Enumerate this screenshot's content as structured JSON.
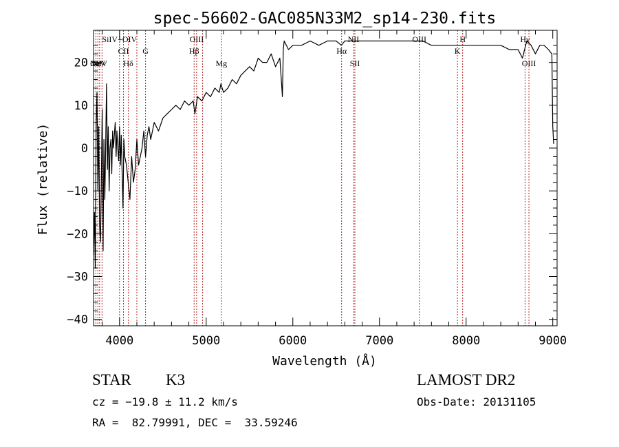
{
  "chart_data": {
    "type": "line",
    "title": "spec-56602-GAC085N33M2_sp14-230.fits",
    "xlabel": "Wavelength (Å)",
    "ylabel": "Flux (relative)",
    "xlim": [
      3700,
      9050
    ],
    "ylim": [
      -41.5,
      27.5
    ],
    "xticks": [
      4000,
      5000,
      6000,
      7000,
      8000,
      9000
    ],
    "xtick_labels": [
      "4000",
      "5000",
      "6000",
      "7000",
      "8000",
      "9000"
    ],
    "yticks": [
      -40,
      -30,
      -20,
      -10,
      0,
      10,
      20
    ],
    "ytick_labels": [
      "−40",
      "−30",
      "−20",
      "−10",
      "0",
      "10",
      "20"
    ],
    "grid": false,
    "series": [
      {
        "name": "flux",
        "x": [
          3700,
          3710,
          3720,
          3730,
          3740,
          3750,
          3760,
          3770,
          3780,
          3790,
          3800,
          3810,
          3820,
          3830,
          3840,
          3850,
          3860,
          3870,
          3880,
          3890,
          3900,
          3910,
          3920,
          3930,
          3940,
          3950,
          3960,
          3970,
          3980,
          3990,
          4000,
          4010,
          4020,
          4030,
          4040,
          4050,
          4060,
          4080,
          4100,
          4120,
          4140,
          4160,
          4180,
          4200,
          4220,
          4240,
          4260,
          4280,
          4300,
          4320,
          4340,
          4360,
          4380,
          4400,
          4450,
          4500,
          4550,
          4600,
          4650,
          4700,
          4750,
          4800,
          4850,
          4870,
          4900,
          4950,
          5000,
          5050,
          5100,
          5150,
          5170,
          5200,
          5250,
          5300,
          5350,
          5400,
          5450,
          5500,
          5550,
          5600,
          5650,
          5700,
          5750,
          5800,
          5850,
          5870,
          5880,
          5890,
          5900,
          5950,
          6000,
          6100,
          6200,
          6300,
          6400,
          6500,
          6560,
          6600,
          6700,
          6800,
          6900,
          7000,
          7100,
          7200,
          7300,
          7400,
          7500,
          7600,
          7700,
          7800,
          7900,
          8000,
          8100,
          8200,
          8300,
          8400,
          8500,
          8600,
          8650,
          8700,
          8750,
          8800,
          8850,
          8900,
          8950,
          8990,
          9000,
          9010
        ],
        "values": [
          -25,
          -15,
          -28,
          6,
          13,
          -10,
          5,
          -18,
          -22,
          -8,
          9,
          -24,
          2,
          -12,
          0,
          15,
          -5,
          5,
          -10,
          0,
          2,
          -6,
          4,
          0,
          3,
          6,
          -2,
          4,
          0,
          -3,
          5,
          -4,
          3,
          -6,
          -14,
          2,
          -2,
          -4,
          -8,
          -12,
          -2,
          -8,
          -5,
          2,
          -4,
          -2,
          0,
          4,
          -2,
          3,
          5,
          2,
          4,
          6,
          4,
          7,
          8,
          9,
          10,
          9,
          11,
          10,
          11,
          8,
          12,
          11,
          13,
          12,
          14,
          13,
          15,
          13,
          14,
          16,
          15,
          17,
          18,
          19,
          18,
          21,
          20,
          20,
          22,
          19,
          21,
          15,
          12,
          23,
          25,
          23,
          24,
          24,
          25,
          24,
          25,
          25,
          24,
          25,
          25,
          25,
          25,
          25,
          25,
          25,
          25,
          25,
          25,
          24,
          24,
          24,
          24,
          24,
          24,
          24,
          24,
          24,
          23,
          23,
          21,
          25,
          24,
          22,
          24,
          24,
          23,
          22,
          5,
          1
        ]
      }
    ],
    "lines": [
      {
        "x": 3727,
        "label": "OII",
        "row": "a"
      },
      {
        "x": 3750,
        "label": "NeV",
        "row": "a"
      },
      {
        "x": 3770,
        "label": "NeV",
        "row": "a"
      },
      {
        "x": 3798,
        "label": "",
        "row": "a"
      },
      {
        "x": 4000,
        "label": "SiIV+OIV",
        "row": "t1"
      },
      {
        "x": 4045,
        "label": "CII",
        "row": "t2"
      },
      {
        "x": 4102,
        "label": "Hδ",
        "row": "b"
      },
      {
        "x": 4200,
        "label": "",
        "row": "b"
      },
      {
        "x": 4300,
        "label": "G",
        "row": "t2"
      },
      {
        "x": 4861,
        "label": "Hβ",
        "row": "t2"
      },
      {
        "x": 4890,
        "label": "OIII",
        "row": "t1"
      },
      {
        "x": 4959,
        "label": "",
        "row": "t1"
      },
      {
        "x": 5175,
        "label": "Mg",
        "row": "b"
      },
      {
        "x": 6563,
        "label": "Hα",
        "row": "t2"
      },
      {
        "x": 6700,
        "label": "NII",
        "row": "t1"
      },
      {
        "x": 6716,
        "label": "SII",
        "row": "b"
      },
      {
        "x": 7460,
        "label": "OIII",
        "row": "t1"
      },
      {
        "x": 7900,
        "label": "K",
        "row": "t2"
      },
      {
        "x": 7960,
        "label": "H",
        "row": "t1"
      },
      {
        "x": 8680,
        "label": "Hγ",
        "row": "t1"
      },
      {
        "x": 8725,
        "label": "OIII",
        "row": "b"
      }
    ],
    "line_color": "#b22222"
  },
  "info": {
    "object_class": "STAR",
    "subclass": "K3",
    "survey": "LAMOST DR2",
    "redshift": "cz = −19.8 ± 11.2 km/s",
    "obs_date": "Obs-Date: 20131105",
    "coords": "RA =  82.79991, DEC =  33.59246"
  }
}
